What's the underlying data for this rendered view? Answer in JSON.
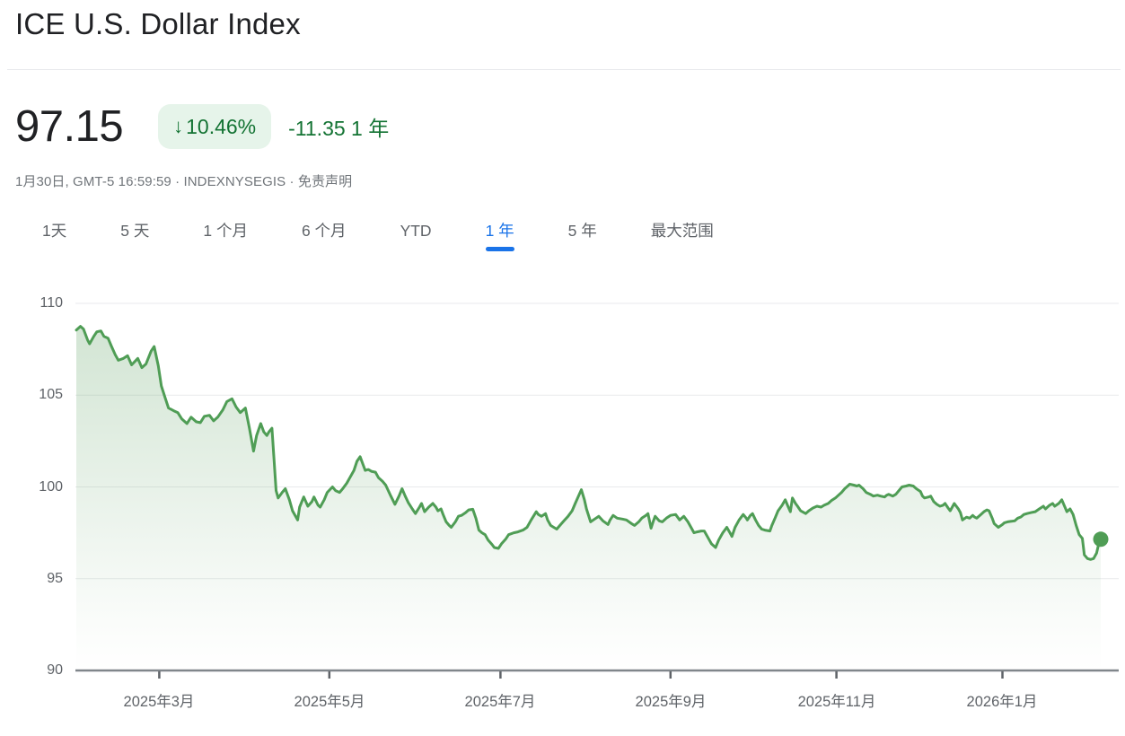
{
  "header": {
    "title": "ICE U.S. Dollar Index",
    "price": "97.15",
    "change_arrow": "↓",
    "change_percent": "10.46%",
    "change_absolute": "-11.35 1 年",
    "meta_prefix": "1月30日, GMT-5 16:59:59 · INDEXNYSEGIS · ",
    "disclaimer": "免责声明"
  },
  "tabs": [
    {
      "label": "1天",
      "selected": false
    },
    {
      "label": "5 天",
      "selected": false
    },
    {
      "label": "1 个月",
      "selected": false
    },
    {
      "label": "6 个月",
      "selected": false
    },
    {
      "label": "YTD",
      "selected": false
    },
    {
      "label": "1 年",
      "selected": true
    },
    {
      "label": "5 年",
      "selected": false
    },
    {
      "label": "最大范围",
      "selected": false
    }
  ],
  "colors": {
    "accent_blue": "#1a73e8",
    "green_text": "#137333",
    "badge_background": "#e6f4ea",
    "line_green": "#4f9d55",
    "area_green": "rgba(82,154,87,0.26)",
    "grid_gray": "#e9eaec",
    "axis_gray": "#80868b",
    "label_gray": "#5f6368",
    "title_black": "#202124"
  },
  "chart_data": {
    "type": "line",
    "series_name": "ICE U.S. Dollar Index",
    "ylim": [
      90,
      110
    ],
    "y_ticks": [
      110,
      105,
      100,
      95,
      90
    ],
    "x_ticks": [
      {
        "t": 81,
        "label": "2025年3月"
      },
      {
        "t": 247,
        "label": "2025年5月"
      },
      {
        "t": 414,
        "label": "2025年7月"
      },
      {
        "t": 580,
        "label": "2025年9月"
      },
      {
        "t": 742,
        "label": "2025年11月"
      },
      {
        "t": 904,
        "label": "2026年1月"
      }
    ],
    "t_scale": 1000,
    "grid": "horizontal",
    "last_value": 97.15,
    "end_dot": true,
    "points": [
      [
        0,
        108.55
      ],
      [
        4,
        108.75
      ],
      [
        7,
        108.6
      ],
      [
        11,
        108.0
      ],
      [
        13,
        107.8
      ],
      [
        17,
        108.2
      ],
      [
        20,
        108.45
      ],
      [
        24,
        108.5
      ],
      [
        27,
        108.2
      ],
      [
        31,
        108.1
      ],
      [
        34,
        107.7
      ],
      [
        38,
        107.2
      ],
      [
        41,
        106.9
      ],
      [
        46,
        107.0
      ],
      [
        50,
        107.15
      ],
      [
        54,
        106.65
      ],
      [
        60,
        107.0
      ],
      [
        64,
        106.5
      ],
      [
        68,
        106.7
      ],
      [
        73,
        107.4
      ],
      [
        76,
        107.65
      ],
      [
        80,
        106.6
      ],
      [
        83,
        105.5
      ],
      [
        87,
        104.8
      ],
      [
        90,
        104.3
      ],
      [
        95,
        104.15
      ],
      [
        99,
        104.05
      ],
      [
        103,
        103.7
      ],
      [
        108,
        103.45
      ],
      [
        112,
        103.8
      ],
      [
        117,
        103.55
      ],
      [
        121,
        103.5
      ],
      [
        125,
        103.85
      ],
      [
        130,
        103.9
      ],
      [
        134,
        103.6
      ],
      [
        138,
        103.8
      ],
      [
        143,
        104.2
      ],
      [
        147,
        104.65
      ],
      [
        152,
        104.8
      ],
      [
        156,
        104.35
      ],
      [
        160,
        104.05
      ],
      [
        165,
        104.3
      ],
      [
        169,
        103.2
      ],
      [
        173,
        101.95
      ],
      [
        176,
        102.8
      ],
      [
        180,
        103.45
      ],
      [
        183,
        103.0
      ],
      [
        186,
        102.8
      ],
      [
        188,
        103.0
      ],
      [
        191,
        103.2
      ],
      [
        193,
        101.5
      ],
      [
        195,
        99.8
      ],
      [
        197,
        99.4
      ],
      [
        201,
        99.7
      ],
      [
        204,
        99.9
      ],
      [
        208,
        99.3
      ],
      [
        211,
        98.7
      ],
      [
        216,
        98.2
      ],
      [
        218,
        98.9
      ],
      [
        222,
        99.45
      ],
      [
        226,
        98.95
      ],
      [
        230,
        99.2
      ],
      [
        232,
        99.45
      ],
      [
        236,
        99.0
      ],
      [
        238,
        98.9
      ],
      [
        242,
        99.3
      ],
      [
        245,
        99.7
      ],
      [
        250,
        100.0
      ],
      [
        253,
        99.8
      ],
      [
        257,
        99.7
      ],
      [
        260,
        99.9
      ],
      [
        264,
        100.2
      ],
      [
        267,
        100.5
      ],
      [
        271,
        100.9
      ],
      [
        274,
        101.4
      ],
      [
        277,
        101.65
      ],
      [
        280,
        101.2
      ],
      [
        282,
        100.9
      ],
      [
        285,
        100.95
      ],
      [
        288,
        100.85
      ],
      [
        292,
        100.8
      ],
      [
        295,
        100.5
      ],
      [
        299,
        100.3
      ],
      [
        302,
        100.1
      ],
      [
        307,
        99.5
      ],
      [
        311,
        99.05
      ],
      [
        315,
        99.5
      ],
      [
        318,
        99.9
      ],
      [
        321,
        99.5
      ],
      [
        324,
        99.15
      ],
      [
        328,
        98.8
      ],
      [
        331,
        98.55
      ],
      [
        335,
        98.9
      ],
      [
        337,
        99.1
      ],
      [
        340,
        98.65
      ],
      [
        344,
        98.9
      ],
      [
        348,
        99.1
      ],
      [
        351,
        98.9
      ],
      [
        353,
        98.7
      ],
      [
        356,
        98.8
      ],
      [
        358,
        98.5
      ],
      [
        361,
        98.1
      ],
      [
        364,
        97.9
      ],
      [
        366,
        97.8
      ],
      [
        370,
        98.1
      ],
      [
        373,
        98.4
      ],
      [
        376,
        98.45
      ],
      [
        380,
        98.6
      ],
      [
        383,
        98.75
      ],
      [
        387,
        98.78
      ],
      [
        390,
        98.3
      ],
      [
        393,
        97.65
      ],
      [
        396,
        97.5
      ],
      [
        399,
        97.4
      ],
      [
        402,
        97.1
      ],
      [
        406,
        96.85
      ],
      [
        408,
        96.7
      ],
      [
        412,
        96.65
      ],
      [
        415,
        96.9
      ],
      [
        419,
        97.15
      ],
      [
        422,
        97.4
      ],
      [
        427,
        97.5
      ],
      [
        431,
        97.55
      ],
      [
        436,
        97.65
      ],
      [
        440,
        97.8
      ],
      [
        444,
        98.2
      ],
      [
        449,
        98.65
      ],
      [
        451,
        98.5
      ],
      [
        454,
        98.4
      ],
      [
        458,
        98.55
      ],
      [
        460,
        98.2
      ],
      [
        463,
        97.9
      ],
      [
        466,
        97.8
      ],
      [
        469,
        97.7
      ],
      [
        472,
        97.9
      ],
      [
        476,
        98.15
      ],
      [
        480,
        98.4
      ],
      [
        484,
        98.7
      ],
      [
        487,
        99.1
      ],
      [
        491,
        99.6
      ],
      [
        493,
        99.85
      ],
      [
        496,
        99.3
      ],
      [
        498,
        98.8
      ],
      [
        502,
        98.1
      ],
      [
        506,
        98.25
      ],
      [
        510,
        98.4
      ],
      [
        514,
        98.15
      ],
      [
        519,
        97.95
      ],
      [
        521,
        98.2
      ],
      [
        524,
        98.45
      ],
      [
        528,
        98.3
      ],
      [
        533,
        98.25
      ],
      [
        537,
        98.2
      ],
      [
        542,
        98.0
      ],
      [
        545,
        97.9
      ],
      [
        549,
        98.1
      ],
      [
        552,
        98.3
      ],
      [
        556,
        98.45
      ],
      [
        558,
        98.55
      ],
      [
        561,
        97.75
      ],
      [
        563,
        98.1
      ],
      [
        565,
        98.4
      ],
      [
        569,
        98.15
      ],
      [
        572,
        98.1
      ],
      [
        576,
        98.3
      ],
      [
        580,
        98.45
      ],
      [
        585,
        98.5
      ],
      [
        589,
        98.2
      ],
      [
        593,
        98.4
      ],
      [
        597,
        98.1
      ],
      [
        600,
        97.8
      ],
      [
        603,
        97.5
      ],
      [
        606,
        97.55
      ],
      [
        610,
        97.6
      ],
      [
        613,
        97.6
      ],
      [
        617,
        97.2
      ],
      [
        620,
        96.9
      ],
      [
        624,
        96.7
      ],
      [
        627,
        97.1
      ],
      [
        631,
        97.5
      ],
      [
        635,
        97.8
      ],
      [
        638,
        97.5
      ],
      [
        640,
        97.3
      ],
      [
        643,
        97.8
      ],
      [
        647,
        98.2
      ],
      [
        651,
        98.5
      ],
      [
        654,
        98.3
      ],
      [
        655,
        98.2
      ],
      [
        658,
        98.45
      ],
      [
        660,
        98.55
      ],
      [
        663,
        98.2
      ],
      [
        666,
        97.9
      ],
      [
        669,
        97.7
      ],
      [
        672,
        97.65
      ],
      [
        677,
        97.6
      ],
      [
        679,
        97.9
      ],
      [
        682,
        98.3
      ],
      [
        685,
        98.7
      ],
      [
        689,
        99.0
      ],
      [
        692,
        99.3
      ],
      [
        695,
        98.9
      ],
      [
        697,
        98.65
      ],
      [
        699,
        99.4
      ],
      [
        702,
        99.1
      ],
      [
        704,
        98.95
      ],
      [
        707,
        98.7
      ],
      [
        712,
        98.55
      ],
      [
        715,
        98.7
      ],
      [
        719,
        98.85
      ],
      [
        723,
        98.95
      ],
      [
        727,
        98.9
      ],
      [
        730,
        99.0
      ],
      [
        734,
        99.1
      ],
      [
        737,
        99.25
      ],
      [
        741,
        99.4
      ],
      [
        743,
        99.5
      ],
      [
        747,
        99.7
      ],
      [
        750,
        99.9
      ],
      [
        753,
        100.05
      ],
      [
        755,
        100.15
      ],
      [
        759,
        100.1
      ],
      [
        762,
        100.05
      ],
      [
        764,
        100.1
      ],
      [
        768,
        99.9
      ],
      [
        771,
        99.7
      ],
      [
        775,
        99.6
      ],
      [
        778,
        99.5
      ],
      [
        782,
        99.55
      ],
      [
        785,
        99.5
      ],
      [
        789,
        99.45
      ],
      [
        791,
        99.55
      ],
      [
        793,
        99.6
      ],
      [
        797,
        99.5
      ],
      [
        800,
        99.6
      ],
      [
        803,
        99.8
      ],
      [
        806,
        100.0
      ],
      [
        810,
        100.05
      ],
      [
        813,
        100.1
      ],
      [
        817,
        100.05
      ],
      [
        820,
        99.9
      ],
      [
        824,
        99.75
      ],
      [
        826,
        99.5
      ],
      [
        828,
        99.4
      ],
      [
        832,
        99.45
      ],
      [
        834,
        99.5
      ],
      [
        837,
        99.2
      ],
      [
        840,
        99.05
      ],
      [
        843,
        98.95
      ],
      [
        846,
        99.0
      ],
      [
        848,
        99.1
      ],
      [
        851,
        98.85
      ],
      [
        853,
        98.7
      ],
      [
        855,
        98.9
      ],
      [
        857,
        99.1
      ],
      [
        861,
        98.8
      ],
      [
        863,
        98.6
      ],
      [
        865,
        98.2
      ],
      [
        869,
        98.35
      ],
      [
        872,
        98.3
      ],
      [
        875,
        98.45
      ],
      [
        877,
        98.35
      ],
      [
        879,
        98.3
      ],
      [
        883,
        98.5
      ],
      [
        886,
        98.65
      ],
      [
        889,
        98.75
      ],
      [
        891,
        98.7
      ],
      [
        894,
        98.3
      ],
      [
        896,
        98.0
      ],
      [
        900,
        97.8
      ],
      [
        904,
        97.95
      ],
      [
        906,
        98.05
      ],
      [
        909,
        98.1
      ],
      [
        912,
        98.12
      ],
      [
        916,
        98.15
      ],
      [
        919,
        98.3
      ],
      [
        922,
        98.36
      ],
      [
        925,
        98.5
      ],
      [
        928,
        98.55
      ],
      [
        932,
        98.6
      ],
      [
        936,
        98.65
      ],
      [
        940,
        98.8
      ],
      [
        944,
        98.95
      ],
      [
        946,
        98.8
      ],
      [
        950,
        99.0
      ],
      [
        953,
        99.1
      ],
      [
        955,
        98.95
      ],
      [
        959,
        99.1
      ],
      [
        962,
        99.3
      ],
      [
        965,
        98.9
      ],
      [
        967,
        98.65
      ],
      [
        970,
        98.8
      ],
      [
        973,
        98.5
      ],
      [
        976,
        97.9
      ],
      [
        979,
        97.4
      ],
      [
        982,
        97.2
      ],
      [
        984,
        96.3
      ],
      [
        987,
        96.1
      ],
      [
        990,
        96.05
      ],
      [
        993,
        96.1
      ],
      [
        996,
        96.4
      ],
      [
        998,
        96.9
      ],
      [
        1000,
        97.15
      ]
    ]
  }
}
